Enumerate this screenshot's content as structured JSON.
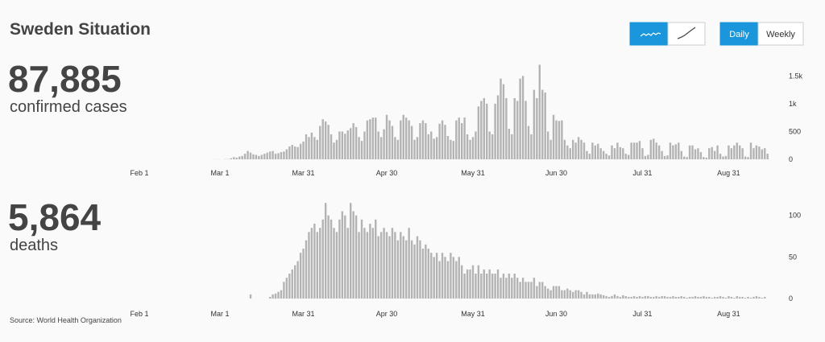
{
  "header": {
    "title": "Sweden Situation"
  },
  "toggle": [
    "Daily",
    "Weekly"
  ],
  "source": "Source: World Health Organization",
  "chart_data": [
    {
      "type": "bar",
      "headline": "87,885",
      "label": "confirmed cases",
      "color": "#b3b3b3",
      "categories": [
        "Feb 1",
        null,
        null,
        null,
        null,
        null,
        null,
        null,
        null,
        null,
        null,
        null,
        null,
        null,
        null,
        null,
        null,
        null,
        null,
        null,
        null,
        null,
        null,
        null,
        null,
        null,
        null,
        null,
        null,
        "Mar 1",
        null,
        null,
        null,
        null,
        null,
        null,
        null,
        null,
        null,
        null,
        null,
        null,
        null,
        null,
        null,
        null,
        null,
        null,
        null,
        null,
        null,
        null,
        null,
        null,
        null,
        null,
        null,
        null,
        null,
        "Mar 31",
        null,
        null,
        null,
        null,
        null,
        null,
        null,
        null,
        null,
        null,
        null,
        null,
        null,
        null,
        null,
        null,
        null,
        null,
        null,
        null,
        null,
        null,
        null,
        null,
        null,
        null,
        null,
        null,
        null,
        "Apr 30",
        null,
        null,
        null,
        null,
        null,
        null,
        null,
        null,
        null,
        null,
        null,
        null,
        null,
        null,
        null,
        null,
        null,
        null,
        null,
        null,
        null,
        null,
        null,
        null,
        null,
        null,
        null,
        null,
        null,
        null,
        "May 31",
        null,
        null,
        null,
        null,
        null,
        null,
        null,
        null,
        null,
        null,
        null,
        null,
        null,
        null,
        null,
        null,
        null,
        null,
        null,
        null,
        null,
        null,
        null,
        null,
        null,
        null,
        null,
        null,
        null,
        "Jun 30",
        null,
        null,
        null,
        null,
        null,
        null,
        null,
        null,
        null,
        null,
        null,
        null,
        null,
        null,
        null,
        null,
        null,
        null,
        null,
        null,
        null,
        null,
        null,
        null,
        null,
        null,
        null,
        null,
        null,
        null,
        "Jul 31",
        null,
        null,
        null,
        null,
        null,
        null,
        null,
        null,
        null,
        null,
        null,
        null,
        null,
        null,
        null,
        null,
        null,
        null,
        null,
        null,
        null,
        null,
        null,
        null,
        null,
        null,
        null,
        null,
        null,
        null,
        "Aug 31",
        null,
        null,
        null,
        null,
        null,
        null,
        null,
        null,
        null,
        null,
        null,
        null,
        null,
        null
      ],
      "values": [
        0,
        0,
        0,
        0,
        0,
        0,
        0,
        0,
        0,
        0,
        0,
        0,
        0,
        0,
        0,
        0,
        0,
        0,
        0,
        0,
        0,
        0,
        0,
        0,
        0,
        0,
        0,
        1,
        2,
        1,
        0,
        5,
        5,
        20,
        40,
        30,
        50,
        60,
        100,
        150,
        120,
        90,
        80,
        60,
        80,
        100,
        120,
        140,
        150,
        100,
        110,
        130,
        140,
        180,
        230,
        260,
        230,
        220,
        280,
        320,
        450,
        400,
        480,
        400,
        350,
        600,
        720,
        680,
        620,
        450,
        300,
        350,
        500,
        500,
        460,
        520,
        560,
        650,
        580,
        400,
        330,
        500,
        700,
        720,
        750,
        750,
        500,
        400,
        540,
        800,
        700,
        600,
        400,
        350,
        700,
        800,
        750,
        700,
        600,
        350,
        400,
        650,
        700,
        650,
        450,
        500,
        370,
        400,
        640,
        700,
        620,
        420,
        350,
        330,
        700,
        750,
        650,
        750,
        450,
        350,
        400,
        500,
        950,
        1050,
        1100,
        1000,
        500,
        450,
        1000,
        1150,
        1450,
        1350,
        1100,
        550,
        450,
        1100,
        1050,
        1450,
        1500,
        1050,
        600,
        450,
        1250,
        1100,
        1700,
        1250,
        1200,
        500,
        350,
        800,
        700,
        690,
        700,
        350,
        250,
        200,
        350,
        300,
        400,
        350,
        300,
        150,
        100,
        300,
        250,
        280,
        200,
        150,
        100,
        70,
        250,
        200,
        300,
        220,
        200,
        100,
        80,
        300,
        300,
        300,
        330,
        200,
        60,
        80,
        350,
        370,
        300,
        250,
        150,
        60,
        70,
        300,
        250,
        270,
        300,
        150,
        50,
        40,
        250,
        250,
        180,
        200,
        130,
        40,
        30,
        200,
        220,
        150,
        250,
        100,
        50,
        60,
        250,
        200,
        250,
        300,
        250,
        200,
        50,
        40,
        300,
        200,
        250,
        230,
        180,
        200,
        100
      ],
      "ylim": [
        0,
        1750
      ],
      "yticks": [
        0,
        500,
        {
          "value": 1000,
          "label": "1k"
        },
        {
          "value": 1500,
          "label": "1.5k"
        }
      ]
    },
    {
      "type": "bar",
      "headline": "5,864",
      "label": "deaths",
      "color": "#b3b3b3",
      "categories": [
        "Feb 1",
        null,
        null,
        null,
        null,
        null,
        null,
        null,
        null,
        null,
        null,
        null,
        null,
        null,
        null,
        null,
        null,
        null,
        null,
        null,
        null,
        null,
        null,
        null,
        null,
        null,
        null,
        null,
        null,
        "Mar 1",
        null,
        null,
        null,
        null,
        null,
        null,
        null,
        null,
        null,
        null,
        null,
        null,
        null,
        null,
        null,
        null,
        null,
        null,
        null,
        null,
        null,
        null,
        null,
        null,
        null,
        null,
        null,
        null,
        null,
        "Mar 31",
        null,
        null,
        null,
        null,
        null,
        null,
        null,
        null,
        null,
        null,
        null,
        null,
        null,
        null,
        null,
        null,
        null,
        null,
        null,
        null,
        null,
        null,
        null,
        null,
        null,
        null,
        null,
        null,
        null,
        "Apr 30",
        null,
        null,
        null,
        null,
        null,
        null,
        null,
        null,
        null,
        null,
        null,
        null,
        null,
        null,
        null,
        null,
        null,
        null,
        null,
        null,
        null,
        null,
        null,
        null,
        null,
        null,
        null,
        null,
        null,
        null,
        "May 31",
        null,
        null,
        null,
        null,
        null,
        null,
        null,
        null,
        null,
        null,
        null,
        null,
        null,
        null,
        null,
        null,
        null,
        null,
        null,
        null,
        null,
        null,
        null,
        null,
        null,
        null,
        null,
        null,
        null,
        "Jun 30",
        null,
        null,
        null,
        null,
        null,
        null,
        null,
        null,
        null,
        null,
        null,
        null,
        null,
        null,
        null,
        null,
        null,
        null,
        null,
        null,
        null,
        null,
        null,
        null,
        null,
        null,
        null,
        null,
        null,
        null,
        "Jul 31",
        null,
        null,
        null,
        null,
        null,
        null,
        null,
        null,
        null,
        null,
        null,
        null,
        null,
        null,
        null,
        null,
        null,
        null,
        null,
        null,
        null,
        null,
        null,
        null,
        null,
        null,
        null,
        null,
        null,
        null,
        "Aug 31",
        null,
        null,
        null,
        null,
        null,
        null,
        null,
        null,
        null,
        null,
        null,
        null,
        null,
        null
      ],
      "values": [
        0,
        0,
        0,
        0,
        0,
        0,
        0,
        0,
        0,
        0,
        0,
        0,
        0,
        0,
        0,
        0,
        0,
        0,
        0,
        0,
        0,
        0,
        0,
        0,
        0,
        0,
        0,
        0,
        0,
        0,
        0,
        0,
        0,
        0,
        0,
        0,
        0,
        0,
        0,
        0,
        5,
        0,
        0,
        0,
        0,
        0,
        0,
        2,
        5,
        6,
        8,
        10,
        20,
        25,
        30,
        35,
        40,
        45,
        55,
        60,
        70,
        80,
        85,
        90,
        80,
        85,
        95,
        115,
        100,
        95,
        85,
        80,
        95,
        105,
        100,
        85,
        115,
        105,
        100,
        80,
        95,
        85,
        80,
        90,
        85,
        95,
        75,
        80,
        85,
        80,
        75,
        85,
        80,
        70,
        80,
        75,
        70,
        85,
        70,
        65,
        75,
        70,
        60,
        65,
        60,
        55,
        50,
        55,
        45,
        55,
        50,
        45,
        55,
        50,
        45,
        50,
        40,
        30,
        35,
        35,
        40,
        30,
        40,
        30,
        35,
        30,
        35,
        30,
        30,
        35,
        25,
        30,
        25,
        30,
        25,
        30,
        25,
        20,
        25,
        20,
        20,
        20,
        25,
        15,
        20,
        20,
        15,
        12,
        10,
        15,
        15,
        15,
        10,
        10,
        12,
        10,
        8,
        10,
        10,
        8,
        5,
        8,
        5,
        5,
        5,
        6,
        5,
        4,
        3,
        2,
        3,
        5,
        3,
        2,
        4,
        3,
        2,
        2,
        3,
        2,
        3,
        2,
        3,
        3,
        2,
        2,
        3,
        2,
        3,
        3,
        2,
        2,
        3,
        2,
        2,
        3,
        2,
        1,
        2,
        2,
        3,
        2,
        2,
        3,
        2,
        2,
        1,
        2,
        2,
        3,
        2,
        1,
        3,
        2,
        1,
        3,
        2,
        2,
        1,
        2,
        1,
        2,
        3,
        2,
        1,
        2,
        0
      ],
      "ylim": [
        0,
        120
      ],
      "yticks": [
        0,
        50,
        100
      ]
    }
  ]
}
